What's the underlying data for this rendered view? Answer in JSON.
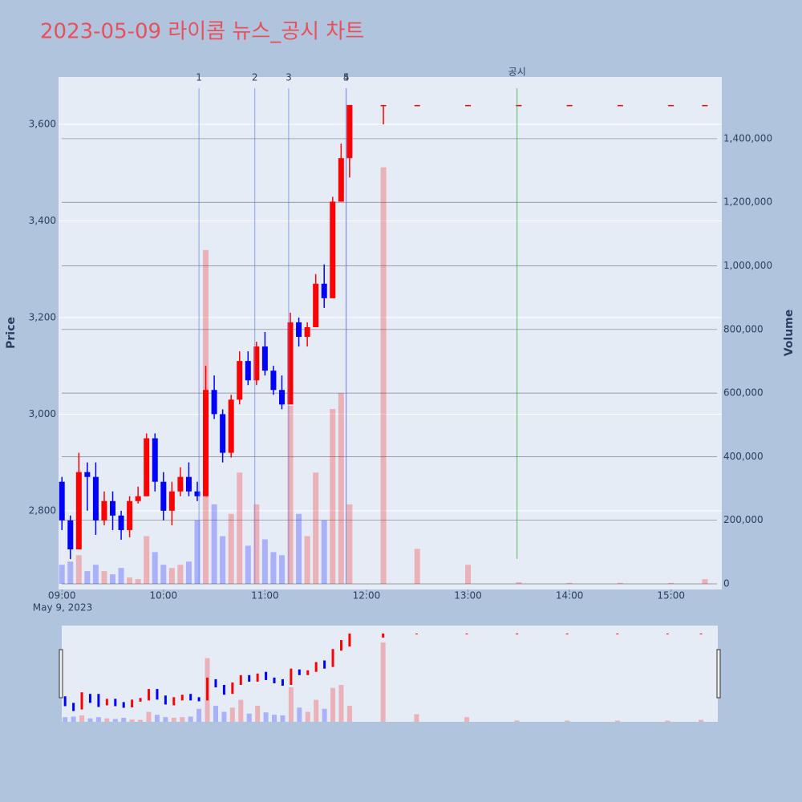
{
  "chart_data": {
    "type": "candlestick",
    "title": "2023-05-09 라이콤 뉴스_공시 차트",
    "y_title": "Price",
    "y2_title": "Volume",
    "x_date_label": "May 9, 2023",
    "up_color": "#ff0000",
    "down_color": "#0000ff",
    "grid": true,
    "rangeslider": true,
    "x": [
      "09:00",
      "09:05",
      "09:10",
      "09:15",
      "09:20",
      "09:25",
      "09:30",
      "09:35",
      "09:40",
      "09:45",
      "09:50",
      "09:55",
      "10:00",
      "10:05",
      "10:10",
      "10:15",
      "10:20",
      "10:25",
      "10:30",
      "10:35",
      "10:40",
      "10:45",
      "10:50",
      "10:55",
      "11:00",
      "11:05",
      "11:10",
      "11:15",
      "11:20",
      "11:25",
      "11:30",
      "11:35",
      "11:40",
      "11:45",
      "11:50",
      "12:10",
      "12:30",
      "13:00",
      "13:30",
      "14:00",
      "14:30",
      "15:00",
      "15:20"
    ],
    "open": [
      2860,
      2780,
      2720,
      2880,
      2870,
      2780,
      2820,
      2790,
      2760,
      2820,
      2830,
      2950,
      2860,
      2800,
      2840,
      2870,
      2840,
      2830,
      3050,
      3000,
      2920,
      3030,
      3110,
      3070,
      3140,
      3090,
      3050,
      3020,
      3190,
      3160,
      3180,
      3270,
      3240,
      3440,
      3530,
      3640,
      3640,
      3640,
      3640,
      3640,
      3640,
      3640,
      3640
    ],
    "high": [
      2870,
      2790,
      2920,
      2900,
      2900,
      2840,
      2840,
      2800,
      2830,
      2850,
      2960,
      2960,
      2880,
      2860,
      2890,
      2900,
      2860,
      3100,
      3080,
      3010,
      3040,
      3130,
      3130,
      3150,
      3170,
      3100,
      3080,
      3210,
      3200,
      3190,
      3290,
      3310,
      3450,
      3560,
      3640,
      3640,
      3640,
      3640,
      3640,
      3640,
      3640,
      3640,
      3640
    ],
    "low": [
      2760,
      2700,
      2720,
      2800,
      2750,
      2770,
      2760,
      2740,
      2745,
      2815,
      2830,
      2840,
      2780,
      2770,
      2830,
      2830,
      2820,
      2830,
      2990,
      2900,
      2910,
      3020,
      3060,
      3060,
      3080,
      3040,
      3010,
      3020,
      3140,
      3140,
      3180,
      3220,
      3240,
      3440,
      3490,
      3600,
      3640,
      3640,
      3640,
      3640,
      3640,
      3640,
      3640
    ],
    "close": [
      2780,
      2720,
      2880,
      2870,
      2780,
      2820,
      2790,
      2760,
      2820,
      2830,
      2950,
      2860,
      2800,
      2840,
      2870,
      2840,
      2830,
      3050,
      3000,
      2920,
      3030,
      3110,
      3070,
      3140,
      3090,
      3050,
      3020,
      3190,
      3160,
      3180,
      3270,
      3240,
      3440,
      3530,
      3640,
      3640,
      3640,
      3640,
      3640,
      3640,
      3640,
      3640,
      3640
    ],
    "volume": [
      60000,
      70000,
      90000,
      40000,
      60000,
      40000,
      30000,
      50000,
      20000,
      15000,
      150000,
      100000,
      60000,
      50000,
      60000,
      70000,
      200000,
      1050000,
      250000,
      150000,
      220000,
      350000,
      120000,
      250000,
      140000,
      100000,
      90000,
      560000,
      220000,
      150000,
      350000,
      200000,
      550000,
      600000,
      250000,
      1310000,
      110000,
      60000,
      5000,
      3000,
      3000,
      3000,
      15000
    ],
    "markers": [
      {
        "label": "1",
        "x": "10:21",
        "color": "#6b7cf0"
      },
      {
        "label": "2",
        "x": "10:54",
        "color": "#6b7cf0"
      },
      {
        "label": "3",
        "x": "11:14",
        "color": "#6b7cf0"
      },
      {
        "label": "4",
        "x": "11:48",
        "color": "#6b7cf0"
      },
      {
        "label": "5",
        "x": "11:48",
        "color": "#6b7cf0"
      },
      {
        "label": "공시",
        "x": "13:29",
        "color": "#2ca02c"
      }
    ],
    "xlim": [
      "08:58",
      "15:30"
    ],
    "xticks": [
      "09:00",
      "10:00",
      "11:00",
      "12:00",
      "13:00",
      "14:00",
      "15:00"
    ],
    "ylim": [
      2637,
      3698
    ],
    "yticks": [
      {
        "value": 2800,
        "label": "2,800"
      },
      {
        "value": 3000,
        "label": "3,000"
      },
      {
        "value": 3200,
        "label": "3,200"
      },
      {
        "value": 3400,
        "label": "3,400"
      },
      {
        "value": 3600,
        "label": "3,600"
      }
    ],
    "y2lim": [
      -17650,
      1594000
    ],
    "y2ticks": [
      0,
      {
        "value": 200000,
        "label": "200,000"
      },
      {
        "value": 400000,
        "label": "400,000"
      },
      {
        "value": 600000,
        "label": "600,000"
      },
      {
        "value": 800000,
        "label": "800,000"
      },
      {
        "value": 1000000,
        "label": "1,000,000"
      },
      {
        "value": 1200000,
        "label": "1,200,000"
      },
      {
        "value": 1400000,
        "label": "1,400,000"
      }
    ]
  }
}
